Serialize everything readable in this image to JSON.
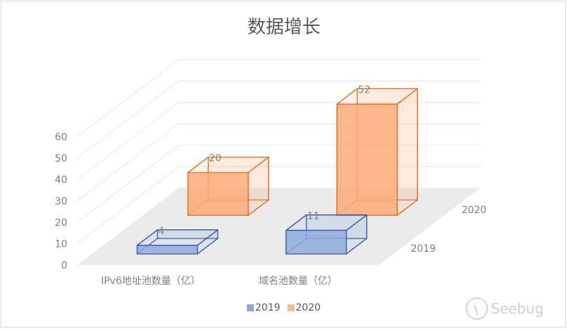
{
  "chart_data": {
    "type": "bar3d",
    "title": "数据增长",
    "categories": [
      "IPv6地址池数量（亿）",
      "域名池数量（亿）"
    ],
    "series": [
      {
        "name": "2019",
        "values": [
          4,
          11
        ],
        "color": "#8faadc",
        "stroke": "#2f52b0"
      },
      {
        "name": "2020",
        "values": [
          20,
          52
        ],
        "color": "#fbab78",
        "stroke": "#e8620a"
      }
    ],
    "yticks": [
      0,
      10,
      20,
      30,
      40,
      50,
      60
    ],
    "ylim": [
      0,
      60
    ],
    "grid": true,
    "legend": "bottom",
    "data_labels": true
  },
  "watermark": "Seebug"
}
